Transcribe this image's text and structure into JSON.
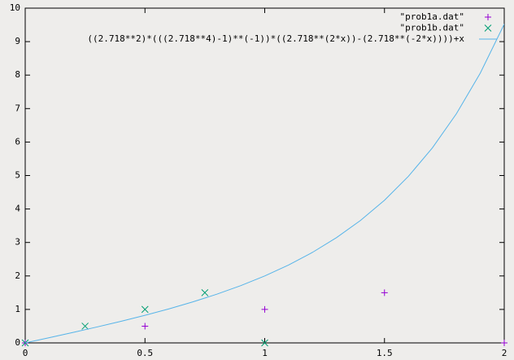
{
  "chart_data": {
    "type": "scatter",
    "xlim": [
      0,
      2
    ],
    "ylim": [
      0,
      10
    ],
    "xticks": [
      0,
      0.5,
      1,
      1.5,
      2
    ],
    "yticks": [
      0,
      1,
      2,
      3,
      4,
      5,
      6,
      7,
      8,
      9,
      10
    ],
    "legend": "top right",
    "series": [
      {
        "name": "\"prob1a.dat\"",
        "type": "scatter",
        "marker": "plus",
        "color": "#9400d3",
        "x": [
          0,
          0.5,
          1,
          1.5,
          2
        ],
        "values": [
          0,
          0.5,
          1,
          1.5,
          0
        ]
      },
      {
        "name": "\"prob1b.dat\"",
        "type": "scatter",
        "marker": "cross",
        "color": "#009e73",
        "x": [
          0,
          0.25,
          0.5,
          0.75,
          1
        ],
        "values": [
          0,
          0.5,
          1,
          1.5,
          0
        ]
      },
      {
        "name": "((2.718**2)*(((2.718**4)-1)**(-1))*((2.718**(2*x))-(2.718**(-2*x))))+x",
        "type": "line",
        "color": "#56b4e9",
        "x": [
          0,
          0.1,
          0.2,
          0.3,
          0.4,
          0.5,
          0.6,
          0.7,
          0.8,
          0.9,
          1,
          1.1,
          1.2,
          1.3,
          1.4,
          1.5,
          1.6,
          1.7,
          1.8,
          1.9,
          2
        ],
        "values": [
          0,
          0.156,
          0.313,
          0.476,
          0.645,
          0.824,
          1.016,
          1.225,
          1.455,
          1.711,
          2,
          2.329,
          2.707,
          3.146,
          3.659,
          4.262,
          4.977,
          5.826,
          6.842,
          8.059,
          9.524
        ]
      }
    ]
  }
}
